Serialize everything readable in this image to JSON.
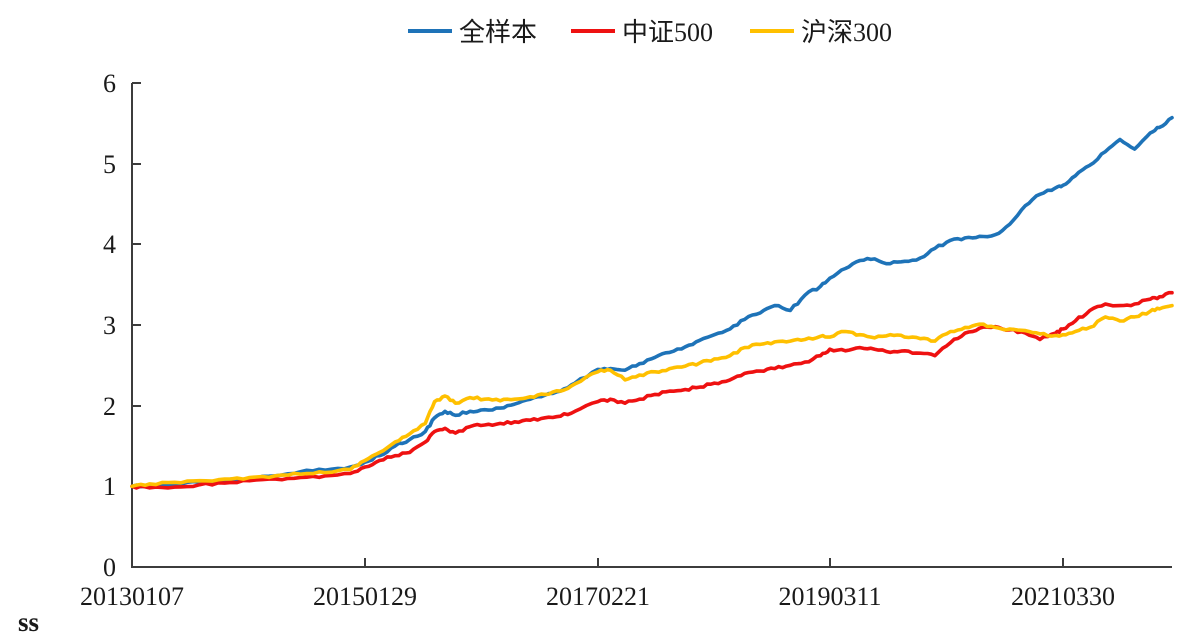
{
  "page": {
    "background": "#ffffff"
  },
  "footer": {
    "watermark": "ss",
    "watermark_color": "#161652"
  },
  "legend": {
    "position": "top-center",
    "items": [
      {
        "label": "全样本",
        "color": "#1E73B8"
      },
      {
        "label": "中证500",
        "color": "#EE1111"
      },
      {
        "label": "沪深300",
        "color": "#FFC000"
      }
    ]
  },
  "chart_data": {
    "type": "line",
    "title": "",
    "xlabel": "",
    "ylabel": "",
    "ylim": [
      0,
      6
    ],
    "y_ticks": [
      "0",
      "1",
      "2",
      "3",
      "4",
      "5",
      "6"
    ],
    "x_tick_labels": [
      "20130107",
      "20150129",
      "20170221",
      "20190311",
      "20210330"
    ],
    "x_tick_positions": [
      0.0,
      0.224,
      0.448,
      0.671,
      0.895
    ],
    "grid": false,
    "legend_position": "top",
    "x": [
      0.0,
      0.017,
      0.041,
      0.065,
      0.089,
      0.113,
      0.138,
      0.162,
      0.186,
      0.21,
      0.224,
      0.238,
      0.253,
      0.267,
      0.282,
      0.291,
      0.301,
      0.311,
      0.325,
      0.339,
      0.354,
      0.368,
      0.383,
      0.397,
      0.412,
      0.426,
      0.448,
      0.46,
      0.474,
      0.488,
      0.503,
      0.517,
      0.532,
      0.546,
      0.56,
      0.575,
      0.589,
      0.604,
      0.618,
      0.633,
      0.647,
      0.662,
      0.671,
      0.686,
      0.7,
      0.714,
      0.729,
      0.743,
      0.758,
      0.772,
      0.787,
      0.801,
      0.815,
      0.83,
      0.844,
      0.859,
      0.873,
      0.888,
      0.895,
      0.907,
      0.921,
      0.936,
      0.95,
      0.964,
      0.979,
      0.988,
      1.0
    ],
    "series": [
      {
        "name": "全样本",
        "color": "#1E73B8",
        "values": [
          1.0,
          1.01,
          1.03,
          1.05,
          1.07,
          1.09,
          1.13,
          1.18,
          1.2,
          1.24,
          1.3,
          1.38,
          1.5,
          1.58,
          1.68,
          1.85,
          1.93,
          1.88,
          1.93,
          1.95,
          1.97,
          2.02,
          2.08,
          2.13,
          2.18,
          2.28,
          2.45,
          2.46,
          2.44,
          2.52,
          2.6,
          2.66,
          2.73,
          2.81,
          2.88,
          2.95,
          3.07,
          3.15,
          3.24,
          3.18,
          3.37,
          3.48,
          3.58,
          3.7,
          3.8,
          3.82,
          3.76,
          3.79,
          3.83,
          3.95,
          4.05,
          4.08,
          4.1,
          4.12,
          4.25,
          4.48,
          4.62,
          4.7,
          4.73,
          4.85,
          4.98,
          5.15,
          5.3,
          5.18,
          5.38,
          5.45,
          5.57
        ]
      },
      {
        "name": "中证500",
        "color": "#EE1111",
        "values": [
          1.0,
          0.98,
          0.99,
          1.02,
          1.04,
          1.07,
          1.09,
          1.11,
          1.13,
          1.16,
          1.24,
          1.32,
          1.38,
          1.42,
          1.55,
          1.68,
          1.72,
          1.66,
          1.74,
          1.76,
          1.78,
          1.8,
          1.82,
          1.85,
          1.87,
          1.93,
          2.05,
          2.08,
          2.03,
          2.08,
          2.14,
          2.18,
          2.2,
          2.23,
          2.28,
          2.32,
          2.4,
          2.43,
          2.46,
          2.5,
          2.54,
          2.62,
          2.7,
          2.68,
          2.72,
          2.7,
          2.66,
          2.68,
          2.65,
          2.62,
          2.78,
          2.9,
          2.96,
          2.98,
          2.94,
          2.9,
          2.82,
          2.9,
          2.95,
          3.05,
          3.18,
          3.26,
          3.24,
          3.26,
          3.32,
          3.35,
          3.4
        ]
      },
      {
        "name": "沪深300",
        "color": "#FFC000",
        "values": [
          1.0,
          1.03,
          1.05,
          1.07,
          1.09,
          1.11,
          1.13,
          1.15,
          1.17,
          1.21,
          1.32,
          1.42,
          1.55,
          1.65,
          1.78,
          2.05,
          2.12,
          2.03,
          2.1,
          2.08,
          2.06,
          2.08,
          2.11,
          2.14,
          2.18,
          2.27,
          2.42,
          2.44,
          2.32,
          2.38,
          2.42,
          2.46,
          2.49,
          2.53,
          2.58,
          2.62,
          2.72,
          2.76,
          2.79,
          2.8,
          2.82,
          2.86,
          2.85,
          2.92,
          2.88,
          2.84,
          2.88,
          2.85,
          2.83,
          2.8,
          2.92,
          2.97,
          3.01,
          2.97,
          2.95,
          2.93,
          2.89,
          2.87,
          2.88,
          2.92,
          2.97,
          3.1,
          3.05,
          3.1,
          3.17,
          3.2,
          3.24
        ]
      }
    ]
  }
}
